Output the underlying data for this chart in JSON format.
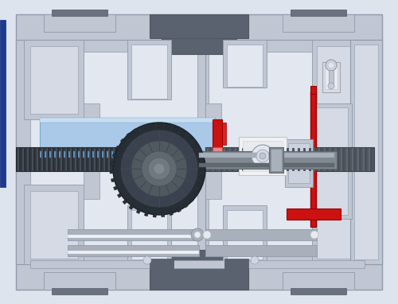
{
  "bg_color": "#dde4ed",
  "body_gray": "#c0c6d2",
  "body_gray2": "#b8beca",
  "dark_gray": "#6a7280",
  "mid_gray": "#9098a8",
  "light_gray": "#d5dae4",
  "lighter_gray": "#e2e7f0",
  "inner_light": "#cdd3de",
  "blue_accent": "#aac8e8",
  "blue_dark": "#7aaad0",
  "red_accent": "#cc1111",
  "red_light": "#e88888",
  "white_part": "#f0f2f5",
  "off_white": "#e8eaee",
  "dark_part": "#353c44",
  "gear_dark": "#282e36",
  "gear_mid": "#3a4250",
  "gear_light": "#606870",
  "shaft_color": "#808890",
  "shaft_light": "#a8b0bc",
  "screw_dark": "#303840",
  "top_bar_color": "#5a6270",
  "panel_edge": "#909aaa",
  "figsize": [
    5.0,
    3.82
  ],
  "dpi": 100
}
